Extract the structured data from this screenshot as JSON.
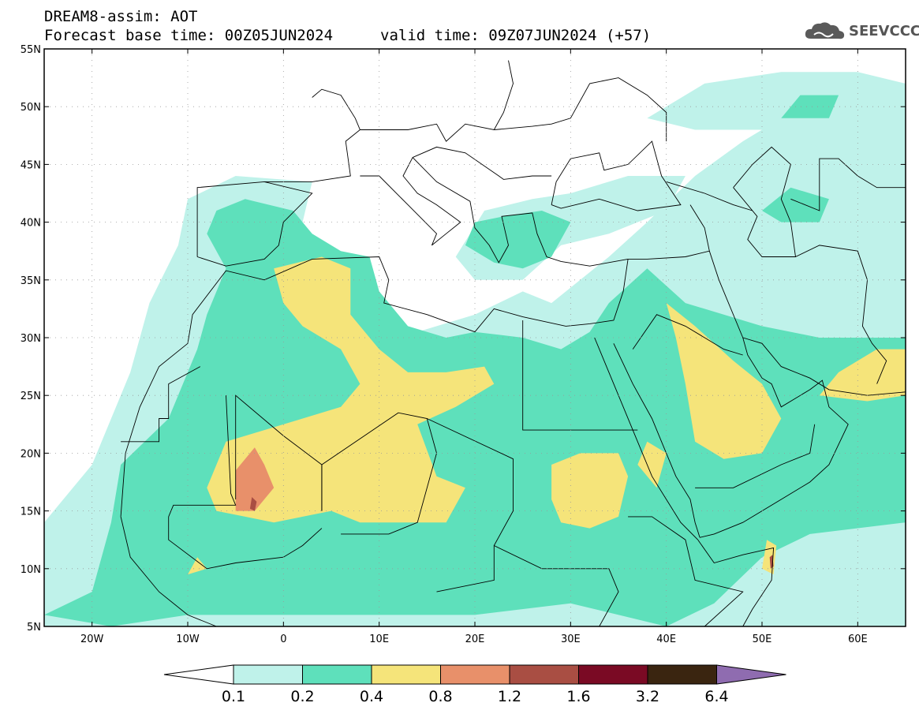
{
  "header": {
    "title_line1": "DREAM8-assim: AOT",
    "base_time": "Forecast base time: 00Z05JUN2024",
    "valid_time": "valid time: 09Z07JUN2024 (+57)"
  },
  "logo": {
    "text": "SEEVCCC",
    "icon": "cloud-icon",
    "color": "#555555"
  },
  "map": {
    "lon_range": [
      -25,
      65
    ],
    "lat_range": [
      5,
      55
    ],
    "lat_ticks": [
      {
        "value": 55,
        "label": "55N"
      },
      {
        "value": 50,
        "label": "50N"
      },
      {
        "value": 45,
        "label": "45N"
      },
      {
        "value": 40,
        "label": "40N"
      },
      {
        "value": 35,
        "label": "35N"
      },
      {
        "value": 30,
        "label": "30N"
      },
      {
        "value": 25,
        "label": "25N"
      },
      {
        "value": 20,
        "label": "20N"
      },
      {
        "value": 15,
        "label": "15N"
      },
      {
        "value": 10,
        "label": "10N"
      },
      {
        "value": 5,
        "label": "5N"
      }
    ],
    "lon_ticks": [
      {
        "value": -20,
        "label": "20W"
      },
      {
        "value": -10,
        "label": "10W"
      },
      {
        "value": 0,
        "label": "0"
      },
      {
        "value": 10,
        "label": "10E"
      },
      {
        "value": 20,
        "label": "20E"
      },
      {
        "value": 30,
        "label": "30E"
      },
      {
        "value": 40,
        "label": "40E"
      },
      {
        "value": 50,
        "label": "50E"
      },
      {
        "value": 60,
        "label": "60E"
      }
    ],
    "grid": "dotted"
  },
  "colorbar": {
    "levels": [
      "0.1",
      "0.2",
      "0.4",
      "0.8",
      "1.2",
      "1.6",
      "3.2",
      "6.4"
    ],
    "colors": [
      "#bff2ea",
      "#5ee0bb",
      "#f5e47a",
      "#e8906a",
      "#a94e43",
      "#7a0a24",
      "#3a2510",
      "#8f6cb0"
    ],
    "low_extend_color": "#ffffff"
  },
  "aot_colors": {
    "c1": "#bff2ea",
    "c2": "#5ee0bb",
    "c3": "#f5e47a",
    "c4": "#e8906a",
    "c5": "#a94e43"
  }
}
